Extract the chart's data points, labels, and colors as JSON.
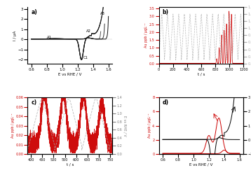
{
  "panel_a": {
    "label": "a)",
    "xlabel": "E vs RHE / V",
    "ylabel": "I / μA",
    "xlim": [
      0.55,
      1.65
    ],
    "ylim": [
      -2.4,
      3.2
    ],
    "xticks": [
      0.6,
      0.8,
      1.0,
      1.2,
      1.4,
      1.6
    ],
    "yticks": [
      -2,
      -1,
      0,
      1,
      2,
      3
    ]
  },
  "panel_b": {
    "label": "b)",
    "xlabel": "t / s",
    "ylabel_left": "Au ppb / μgL⁻¹",
    "ylabel_right": "E vs RHE / V",
    "xlim": [
      0,
      1200
    ],
    "ylim_left": [
      0.0,
      3.6
    ],
    "ylim_right": [
      0.0,
      1.6
    ],
    "xticks": [
      0,
      200,
      400,
      600,
      800,
      1000,
      1200
    ],
    "yticks_left": [
      0.0,
      0.5,
      1.0,
      1.5,
      2.0,
      2.5,
      3.0,
      3.5
    ],
    "yticks_right": [
      0.0,
      0.2,
      0.4,
      0.6,
      0.8,
      1.0,
      1.2,
      1.4,
      1.6
    ]
  },
  "panel_c": {
    "label": "c)",
    "xlabel": "t / s",
    "ylabel_left": "Au ppb / μgL⁻¹",
    "ylabel_right": "E vs RHE / V",
    "xlim": [
      385,
      760
    ],
    "ylim_left": [
      0.0,
      0.06
    ],
    "ylim_right": [
      0.0,
      1.4
    ],
    "xticks": [
      400,
      450,
      500,
      550,
      600,
      650,
      700,
      750
    ],
    "yticks_left": [
      0.0,
      0.01,
      0.02,
      0.03,
      0.04,
      0.05,
      0.06
    ],
    "yticks_right": [
      0.0,
      0.2,
      0.4,
      0.6,
      0.8,
      1.0,
      1.2,
      1.4
    ]
  },
  "panel_d": {
    "label": "d)",
    "xlabel": "E vs RHE / V",
    "ylabel_left": "Au ppb / μgL⁻¹",
    "ylabel_right": "I / μA",
    "xlim": [
      0.55,
      1.65
    ],
    "ylim_left": [
      0.0,
      8.0
    ],
    "ylim_right": [
      -1.0,
      3.0
    ],
    "xticks": [
      0.6,
      0.8,
      1.0,
      1.2,
      1.4,
      1.6
    ],
    "yticks_left": [
      0,
      2,
      4,
      6,
      8
    ],
    "yticks_right": [
      -1,
      0,
      1,
      2,
      3
    ]
  },
  "colors": {
    "red": "#cc0000",
    "gray_dash": "#aaaaaa",
    "black": "#111111"
  }
}
